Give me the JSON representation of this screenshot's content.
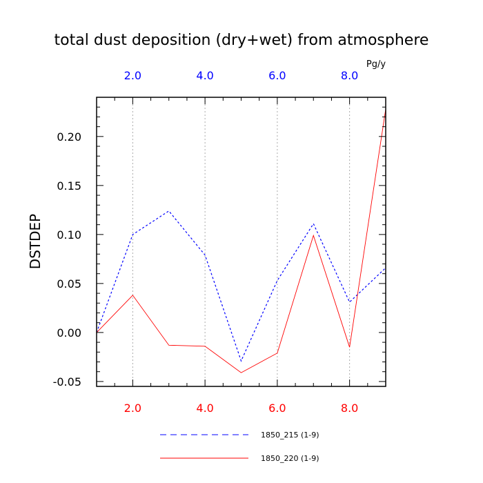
{
  "chart_data": {
    "type": "line",
    "title": "total dust deposition (dry+wet) from atmosphere",
    "units": "Pg/y",
    "ylabel": "DSTDEP",
    "xlim": [
      1,
      9
    ],
    "ylim": [
      -0.055,
      0.24
    ],
    "x_ticks": [
      2.0,
      4.0,
      6.0,
      8.0
    ],
    "x_tick_labels": [
      "2.0",
      "4.0",
      "6.0",
      "8.0"
    ],
    "y_ticks": [
      -0.05,
      0.0,
      0.05,
      0.1,
      0.15,
      0.2
    ],
    "y_tick_labels": [
      "-0.05",
      "0.00",
      "0.05",
      "0.10",
      "0.15",
      "0.20"
    ],
    "grid": "vertical dotted at major x ticks",
    "x": [
      1,
      2,
      3,
      4,
      5,
      6,
      7,
      8,
      9
    ],
    "series": [
      {
        "name": "1850_215 (1-9)",
        "color": "#0000ff",
        "dash": "dashed",
        "values": [
          0.0,
          0.1,
          0.124,
          0.079,
          -0.029,
          0.053,
          0.111,
          0.031,
          0.066
        ]
      },
      {
        "name": "1850_220 (1-9)",
        "color": "#ff0000",
        "dash": "solid",
        "values": [
          0.0,
          0.038,
          -0.013,
          -0.014,
          -0.041,
          -0.021,
          0.099,
          -0.015,
          0.228
        ]
      }
    ],
    "top_axis_color": "#0000ff",
    "bottom_axis_color": "#ff0000",
    "legend_placement": "bottom"
  }
}
